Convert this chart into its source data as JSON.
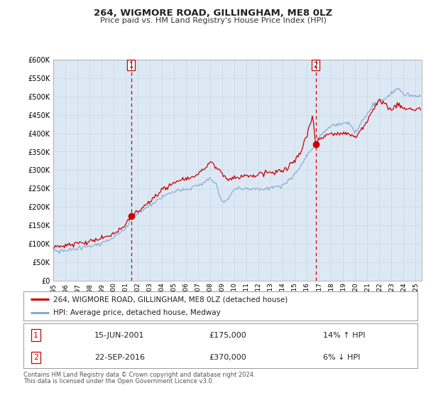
{
  "title": "264, WIGMORE ROAD, GILLINGHAM, ME8 0LZ",
  "subtitle": "Price paid vs. HM Land Registry's House Price Index (HPI)",
  "fig_bg_color": "#ffffff",
  "plot_bg_color": "#dce9f5",
  "red_line_color": "#cc0000",
  "blue_line_color": "#88aacc",
  "vline_color": "#cc0000",
  "ylim": [
    0,
    600000
  ],
  "yticks": [
    0,
    50000,
    100000,
    150000,
    200000,
    250000,
    300000,
    350000,
    400000,
    450000,
    500000,
    550000,
    600000
  ],
  "xlim_start": 1995.0,
  "xlim_end": 2025.5,
  "xticks": [
    1995,
    1996,
    1997,
    1998,
    1999,
    2000,
    2001,
    2002,
    2003,
    2004,
    2005,
    2006,
    2007,
    2008,
    2009,
    2010,
    2011,
    2012,
    2013,
    2014,
    2015,
    2016,
    2017,
    2018,
    2019,
    2020,
    2021,
    2022,
    2023,
    2024,
    2025
  ],
  "vline1_x": 2001.458,
  "vline2_x": 2016.722,
  "marker1_x": 2001.458,
  "marker1_y": 175000,
  "marker2_x": 2016.722,
  "marker2_y": 370000,
  "label1_text": "1",
  "label2_text": "2",
  "legend_entries": [
    "264, WIGMORE ROAD, GILLINGHAM, ME8 0LZ (detached house)",
    "HPI: Average price, detached house, Medway"
  ],
  "table_rows": [
    {
      "num": "1",
      "date": "15-JUN-2001",
      "price": "£175,000",
      "diff": "14% ↑ HPI"
    },
    {
      "num": "2",
      "date": "22-SEP-2016",
      "price": "£370,000",
      "diff": "6% ↓ HPI"
    }
  ],
  "footer1": "Contains HM Land Registry data © Crown copyright and database right 2024.",
  "footer2": "This data is licensed under the Open Government Licence v3.0."
}
